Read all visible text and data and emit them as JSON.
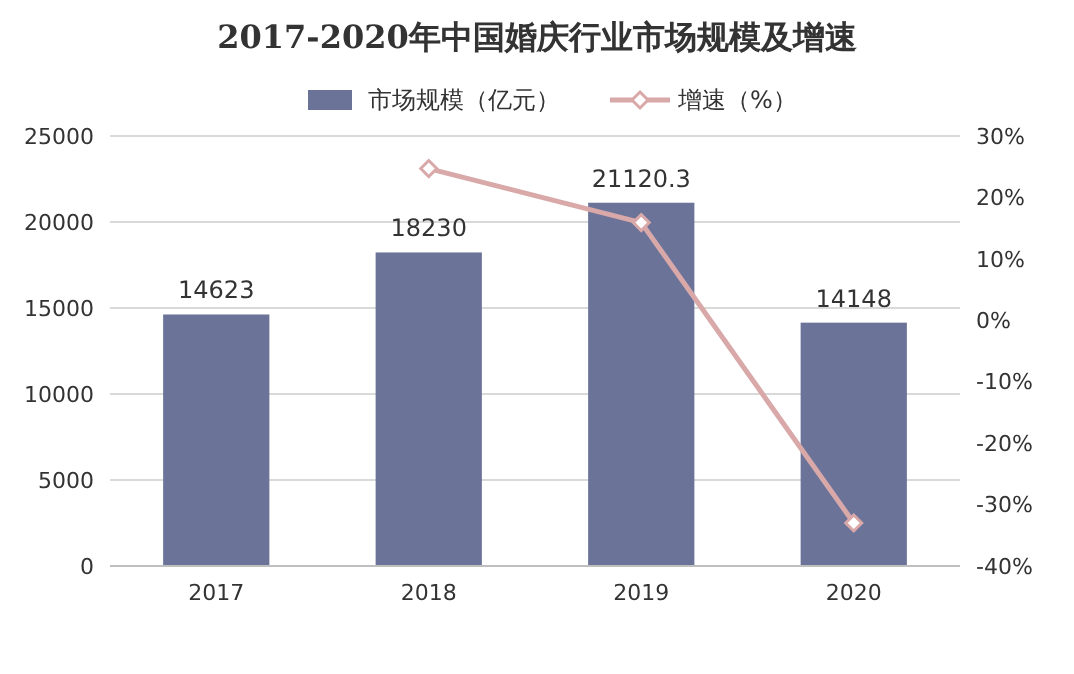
{
  "chart_data": {
    "type": "bar",
    "title": "2017-2020年中国婚庆行业市场规模及增速",
    "categories": [
      "2017",
      "2018",
      "2019",
      "2020"
    ],
    "series": [
      {
        "name": "市场规模（亿元）",
        "color": "#6b7399",
        "values": [
          14623,
          18230,
          21120.3,
          14148
        ]
      },
      {
        "name": "增速（%）",
        "type": "line",
        "axis": "y2",
        "color": "#d9a8a8",
        "values": [
          null,
          24.7,
          15.9,
          -33
        ]
      }
    ],
    "ylim": [
      0,
      25000
    ],
    "yticks": [
      0,
      5000,
      10000,
      15000,
      20000,
      25000
    ],
    "y2lim": [
      -40,
      30
    ],
    "y2ticks": [
      {
        "value": -40,
        "label": "-40%"
      },
      {
        "value": -30,
        "label": "-30%"
      },
      {
        "value": -20,
        "label": "-20%"
      },
      {
        "value": -10,
        "label": "-10%"
      },
      {
        "value": 0,
        "label": "0%"
      },
      {
        "value": 10,
        "label": "10%"
      },
      {
        "value": 20,
        "label": "20%"
      },
      {
        "value": 30,
        "label": "30%"
      }
    ],
    "value_labels": [
      "14623",
      "18230",
      "21120.3",
      "14148"
    ],
    "grid": "y",
    "legend": "top",
    "marker": "diamond",
    "line_style": "solid"
  }
}
